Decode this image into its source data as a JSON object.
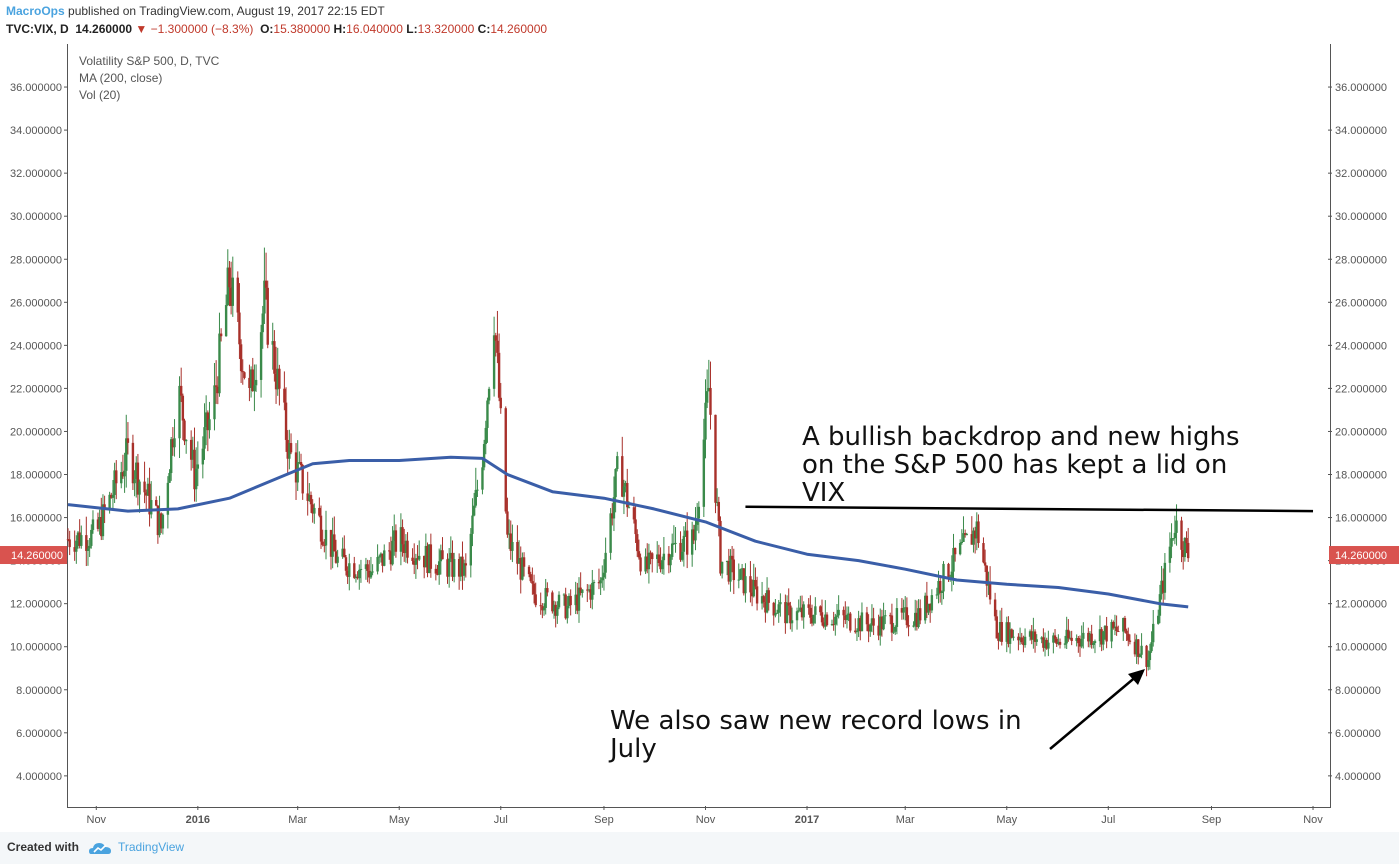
{
  "header": {
    "author": "MacroOps",
    "published_text": "published on TradingView.com, August 19, 2017 22:15 EDT",
    "symbol": "TVC:VIX, D",
    "last": "14.260000",
    "change": "−1.300000 (−8.3%)",
    "open_label": "O:",
    "open": "15.380000",
    "high_label": "H:",
    "high": "16.040000",
    "low_label": "L:",
    "low": "13.320000",
    "close_label": "C:",
    "close": "14.260000"
  },
  "legend": {
    "line1": "Volatility S&P 500, D, TVC",
    "line2": "MA (200, close)",
    "line3": "Vol (20)"
  },
  "annotations": {
    "bullish": [
      "A bullish backdrop and new highs",
      "on the S&P 500 has kept a lid on",
      "VIX"
    ],
    "lows": [
      "We also saw new record lows in",
      "July"
    ]
  },
  "footer": {
    "created": "Created with",
    "brand": "TradingView"
  },
  "colors": {
    "up": "#3a8a4a",
    "down": "#a8302a",
    "ma": "#3a5ea8",
    "price_tag": "#d9534f",
    "brand": "#4aa3df"
  },
  "chart_data": {
    "type": "candlestick",
    "ylim": [
      2.6,
      38
    ],
    "y_ticks": [
      "4.000000",
      "6.000000",
      "8.000000",
      "10.000000",
      "12.000000",
      "14.000000",
      "16.000000",
      "18.000000",
      "20.000000",
      "22.000000",
      "24.000000",
      "26.000000",
      "28.000000",
      "30.000000",
      "32.000000",
      "34.000000",
      "36.000000"
    ],
    "y_tick_values": [
      4,
      6,
      8,
      10,
      12,
      14,
      16,
      18,
      20,
      22,
      24,
      26,
      28,
      30,
      32,
      34,
      36
    ],
    "x_labels": [
      "Nov",
      "2016",
      "Mar",
      "May",
      "Jul",
      "Sep",
      "Nov",
      "2017",
      "Mar",
      "May",
      "Jul",
      "Sep",
      "Nov"
    ],
    "x_label_dates": [
      "2015-11-01",
      "2016-01-01",
      "2016-03-01",
      "2016-05-01",
      "2016-07-01",
      "2016-09-01",
      "2016-11-01",
      "2017-01-01",
      "2017-03-01",
      "2017-05-01",
      "2017-07-01",
      "2017-09-01",
      "2017-11-01"
    ],
    "x_range": [
      "2015-10-15",
      "2017-11-10"
    ],
    "last_price_label": "14.260000",
    "last_price": 14.26,
    "series_approx_close": [
      [
        "2015-10-15",
        15.0
      ],
      [
        "2015-11-01",
        15.2
      ],
      [
        "2015-11-20",
        19.0
      ],
      [
        "2015-12-10",
        15.5
      ],
      [
        "2015-12-20",
        22.0
      ],
      [
        "2015-12-30",
        18.0
      ],
      [
        "2016-01-10",
        21.0
      ],
      [
        "2016-01-20",
        27.0
      ],
      [
        "2016-02-01",
        21.5
      ],
      [
        "2016-02-10",
        26.0
      ],
      [
        "2016-02-25",
        19.0
      ],
      [
        "2016-03-10",
        16.5
      ],
      [
        "2016-03-25",
        14.0
      ],
      [
        "2016-04-15",
        13.5
      ],
      [
        "2016-05-01",
        15.0
      ],
      [
        "2016-05-20",
        14.0
      ],
      [
        "2016-06-10",
        13.5
      ],
      [
        "2016-06-20",
        19.0
      ],
      [
        "2016-06-27",
        25.5
      ],
      [
        "2016-07-05",
        15.0
      ],
      [
        "2016-07-20",
        12.5
      ],
      [
        "2016-08-10",
        11.8
      ],
      [
        "2016-08-30",
        13.0
      ],
      [
        "2016-09-10",
        18.5
      ],
      [
        "2016-09-25",
        13.5
      ],
      [
        "2016-10-10",
        14.5
      ],
      [
        "2016-10-25",
        15.0
      ],
      [
        "2016-11-03",
        22.0
      ],
      [
        "2016-11-10",
        14.0
      ],
      [
        "2016-12-01",
        12.5
      ],
      [
        "2016-12-20",
        11.5
      ],
      [
        "2017-01-10",
        11.5
      ],
      [
        "2017-02-10",
        11.0
      ],
      [
        "2017-03-10",
        11.5
      ],
      [
        "2017-03-22",
        13.0
      ],
      [
        "2017-04-13",
        15.5
      ],
      [
        "2017-04-25",
        10.8
      ],
      [
        "2017-05-15",
        10.4
      ],
      [
        "2017-06-01",
        10.2
      ],
      [
        "2017-06-20",
        10.5
      ],
      [
        "2017-07-10",
        10.8
      ],
      [
        "2017-07-25",
        9.4
      ],
      [
        "2017-08-10",
        15.8
      ],
      [
        "2017-08-18",
        14.26
      ]
    ],
    "ma200_approx": [
      [
        "2015-10-15",
        16.6
      ],
      [
        "2015-11-20",
        16.3
      ],
      [
        "2015-12-20",
        16.4
      ],
      [
        "2016-01-20",
        16.9
      ],
      [
        "2016-02-20",
        17.9
      ],
      [
        "2016-03-10",
        18.5
      ],
      [
        "2016-04-01",
        18.65
      ],
      [
        "2016-05-01",
        18.65
      ],
      [
        "2016-06-01",
        18.8
      ],
      [
        "2016-06-20",
        18.75
      ],
      [
        "2016-07-05",
        18.0
      ],
      [
        "2016-08-01",
        17.2
      ],
      [
        "2016-09-01",
        16.9
      ],
      [
        "2016-10-01",
        16.4
      ],
      [
        "2016-11-01",
        15.8
      ],
      [
        "2016-12-01",
        14.9
      ],
      [
        "2017-01-01",
        14.3
      ],
      [
        "2017-02-01",
        14.0
      ],
      [
        "2017-03-01",
        13.6
      ],
      [
        "2017-04-01",
        13.1
      ],
      [
        "2017-05-01",
        12.9
      ],
      [
        "2017-06-01",
        12.75
      ],
      [
        "2017-07-01",
        12.45
      ],
      [
        "2017-08-01",
        12.0
      ],
      [
        "2017-08-18",
        11.85
      ]
    ],
    "resistance_line": {
      "from": [
        "2016-11-25",
        16.5
      ],
      "to": [
        "2017-11-01",
        16.3
      ]
    }
  }
}
